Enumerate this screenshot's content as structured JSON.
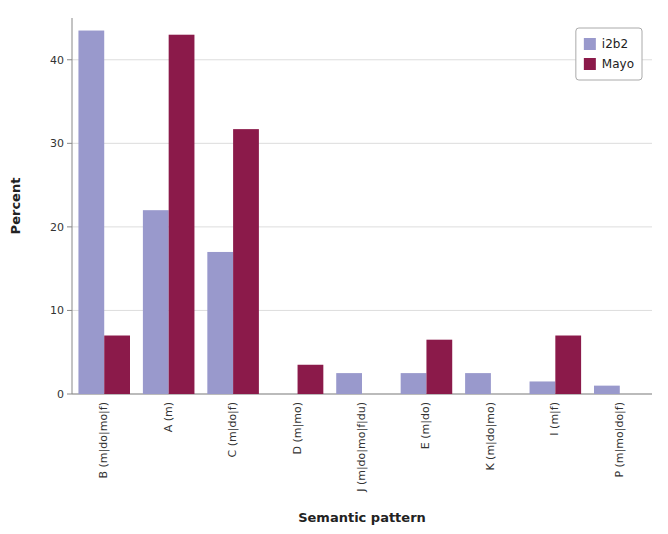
{
  "chart_data": {
    "type": "bar",
    "xlabel": "Semantic pattern",
    "ylabel": "Percent",
    "categories": [
      "B (m|do|mo|f)",
      "A (m)",
      "C (m|do|f)",
      "D (m|mo)",
      "J (m|do|mo|f|du)",
      "E (m|do)",
      "K (m|do|mo)",
      "I (m|f)",
      "P (m|mo|do|f)"
    ],
    "series": [
      {
        "name": "i2b2",
        "color": "#9999cc",
        "values": [
          43.5,
          22.0,
          17.0,
          0.0,
          2.5,
          2.5,
          2.5,
          1.5,
          1.0
        ]
      },
      {
        "name": "Mayo",
        "color": "#8b1a4a",
        "values": [
          7.0,
          43.0,
          31.7,
          3.5,
          0.0,
          6.5,
          0.0,
          7.0,
          0.0
        ]
      }
    ],
    "ylim": [
      0,
      45
    ],
    "yticks": [
      0,
      10,
      20,
      30,
      40
    ],
    "grid": true,
    "legend": "upper right"
  }
}
